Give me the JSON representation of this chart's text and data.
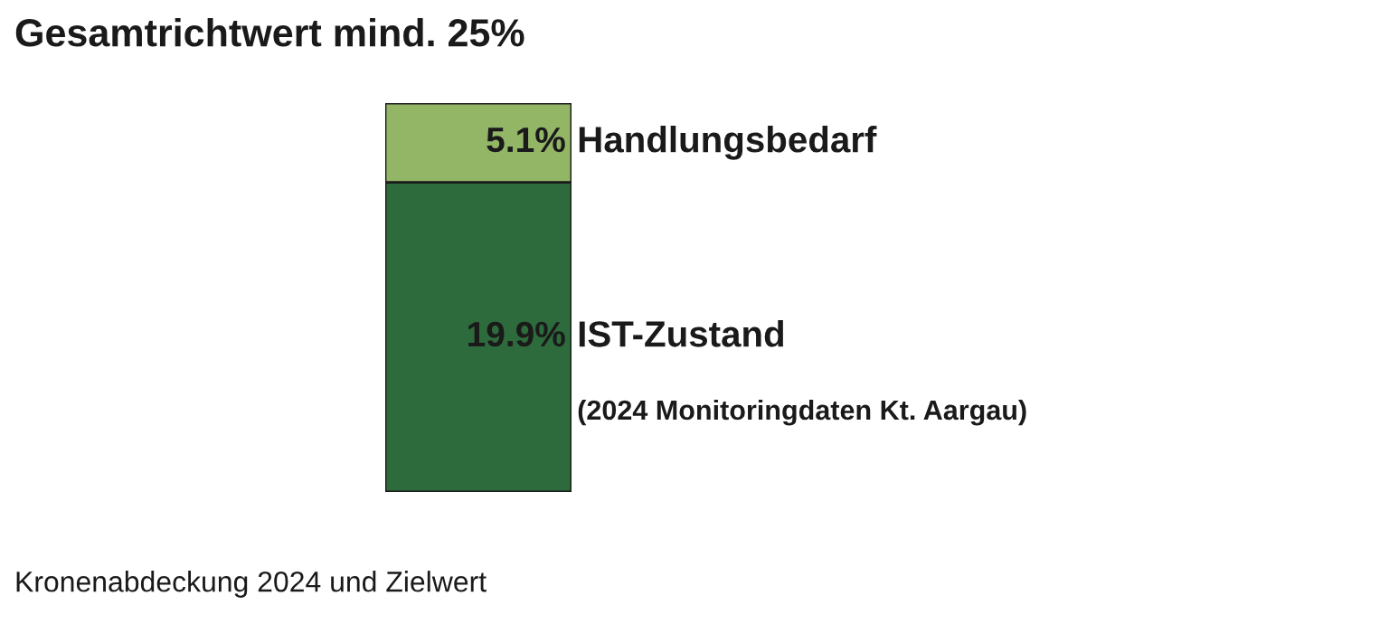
{
  "chart_data": {
    "type": "bar",
    "title": "Gesamtrichtwert mind. 25%",
    "stacked": true,
    "categories": [
      null
    ],
    "series": [
      {
        "name": "IST-Zustand",
        "color": "#2e6b3c",
        "values": [
          19.9
        ],
        "value_labels": [
          "19.9%"
        ]
      },
      {
        "name": "Handlungsbedarf",
        "color": "#93b566",
        "values": [
          5.1
        ],
        "value_labels": [
          "5.1%"
        ]
      }
    ],
    "annotations": [
      "(2024 Monitoringdaten Kt. Aargau)",
      "Kronenabdeckung 2024 und Zielwert"
    ],
    "data_labels": false
  }
}
